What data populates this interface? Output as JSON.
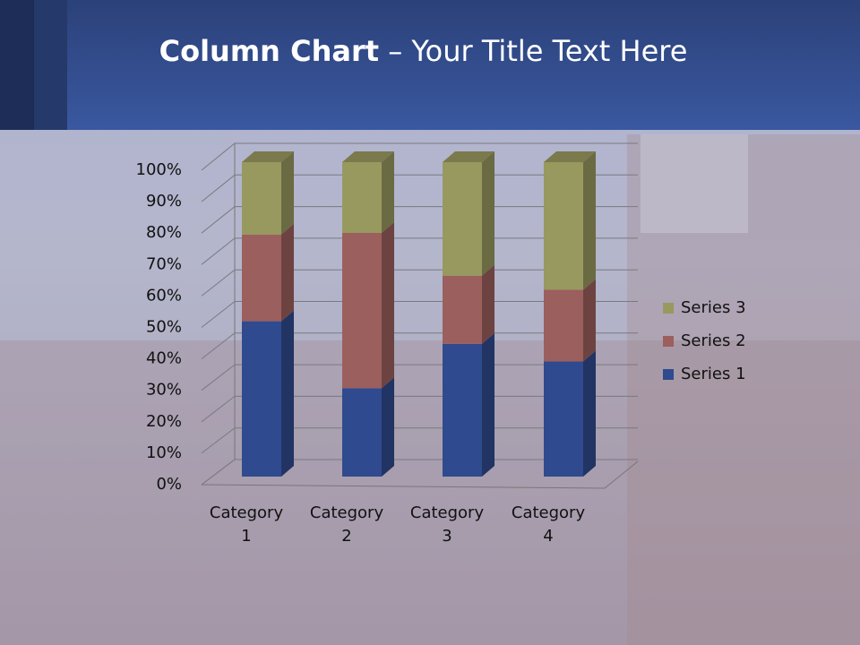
{
  "chart_data": {
    "type": "stacked-column-3d",
    "title": [
      "Column Chart",
      "– Your Title Text Here"
    ],
    "categories": [
      "Category 1",
      "Category 2",
      "Category 3",
      "Category 4"
    ],
    "series": [
      {
        "name": "Series 1",
        "color": "#2f4a8e",
        "values": [
          49.4,
          28.1,
          42.2,
          36.6
        ]
      },
      {
        "name": "Series 2",
        "color": "#9b5f5e",
        "values": [
          27.6,
          49.4,
          21.7,
          22.8
        ]
      },
      {
        "name": "Series 3",
        "color": "#98995f",
        "values": [
          23.0,
          22.5,
          36.1,
          40.6
        ]
      }
    ],
    "ylim": [
      0,
      100
    ],
    "yticks": [
      {
        "value": 0,
        "label": "0%"
      },
      {
        "value": 10,
        "label": "10%"
      },
      {
        "value": 20,
        "label": "20%"
      },
      {
        "value": 30,
        "label": "30%"
      },
      {
        "value": 40,
        "label": "40%"
      },
      {
        "value": 50,
        "label": "50%"
      },
      {
        "value": 60,
        "label": "60%"
      },
      {
        "value": 70,
        "label": "70%"
      },
      {
        "value": 80,
        "label": "80%"
      },
      {
        "value": 90,
        "label": "90%"
      },
      {
        "value": 100,
        "label": "100%"
      }
    ],
    "grid": true,
    "legend": "right"
  }
}
